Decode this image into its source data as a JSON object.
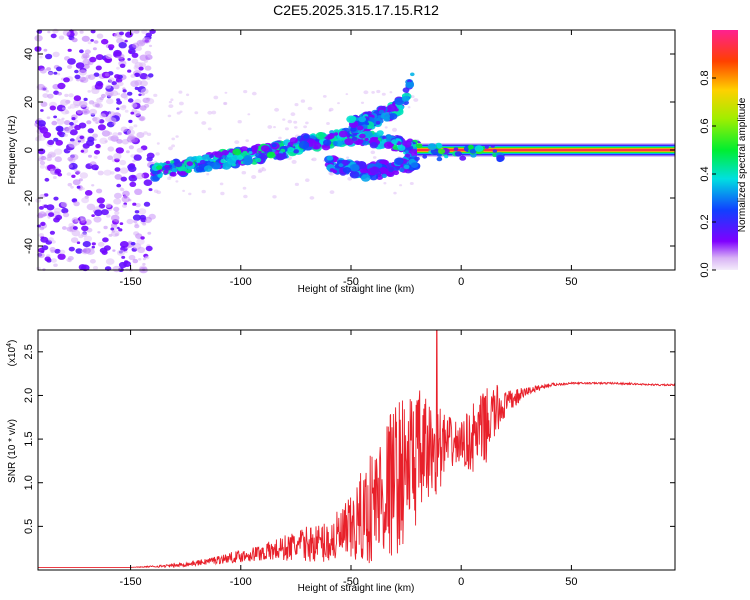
{
  "title": "C2E5.2025.315.17.15.R12",
  "colors": {
    "signal": "#e8202a",
    "axis": "#000000"
  },
  "chart_data": [
    {
      "type": "heatmap",
      "xlabel": "Height of straight line (km)",
      "ylabel": "Frequency (Hz)",
      "xlim": [
        -192,
        97
      ],
      "ylim": [
        -50,
        50
      ],
      "xticks": [
        -150,
        -100,
        -50,
        0,
        50
      ],
      "yticks": [
        -40,
        -20,
        0,
        20,
        40
      ],
      "colorbar_label": "Normalized spectral amplitude",
      "colorbar_range": [
        0.0,
        1.0
      ],
      "colorbar_ticks": [
        0.0,
        0.2,
        0.4,
        0.6,
        0.8
      ],
      "features": [
        {
          "name": "noise",
          "x_range": [
            -192,
            -140
          ],
          "y_range": [
            -50,
            50
          ],
          "amplitude": 0.2
        },
        {
          "name": "rising streak",
          "x": [
            -140,
            -120,
            -100,
            -80,
            -70,
            -55,
            -40,
            -30,
            -20
          ],
          "y": [
            -9,
            -6,
            -3,
            0,
            3,
            5,
            5,
            3,
            0
          ],
          "amplitude": 0.35
        },
        {
          "name": "upper branch",
          "x": [
            -50,
            -40,
            -30,
            -25,
            -22
          ],
          "y": [
            10,
            13,
            17,
            22,
            30
          ],
          "amplitude": 0.3
        },
        {
          "name": "lower branch",
          "x": [
            -60,
            -50,
            -40,
            -30,
            -20
          ],
          "y": [
            -6,
            -8,
            -9,
            -7,
            -4
          ],
          "amplitude": 0.25
        },
        {
          "name": "steady tone",
          "x_range": [
            -20,
            97
          ],
          "y": 0,
          "amplitude": 0.95
        }
      ]
    },
    {
      "type": "line",
      "xlabel": "Height of straight line (km)",
      "ylabel": "SNR (10 * v/v)",
      "y_scale_label": "(x10",
      "y_scale_exponent": "4",
      "xlim": [
        -192,
        97
      ],
      "ylim": [
        0,
        2.75
      ],
      "xticks": [
        -150,
        -100,
        -50,
        0,
        50
      ],
      "yticks": [
        0.5,
        1.0,
        1.5,
        2.0,
        2.5
      ],
      "series": [
        {
          "name": "SNR",
          "x": [
            -192,
            -150,
            -130,
            -120,
            -110,
            -100,
            -90,
            -80,
            -70,
            -60,
            -50,
            -40,
            -30,
            -20,
            -15,
            -10,
            -5,
            0,
            5,
            10,
            15,
            20,
            30,
            40,
            50,
            70,
            90,
            97
          ],
          "y": [
            0.03,
            0.03,
            0.05,
            0.08,
            0.12,
            0.16,
            0.2,
            0.25,
            0.3,
            0.32,
            0.45,
            0.75,
            1.05,
            1.3,
            1.35,
            1.4,
            1.45,
            1.45,
            1.5,
            1.6,
            1.8,
            1.9,
            2.05,
            2.12,
            2.14,
            2.14,
            2.12,
            2.12
          ],
          "noise": [
            0,
            0,
            0.02,
            0.03,
            0.05,
            0.07,
            0.1,
            0.15,
            0.2,
            0.25,
            0.4,
            0.7,
            0.9,
            0.8,
            0.6,
            0.5,
            0.3,
            0.25,
            0.4,
            0.45,
            0.35,
            0.15,
            0.05,
            0.02,
            0.01,
            0.01,
            0.01,
            0.01
          ],
          "spike": {
            "x": -11,
            "y": 2.75
          }
        }
      ]
    }
  ]
}
